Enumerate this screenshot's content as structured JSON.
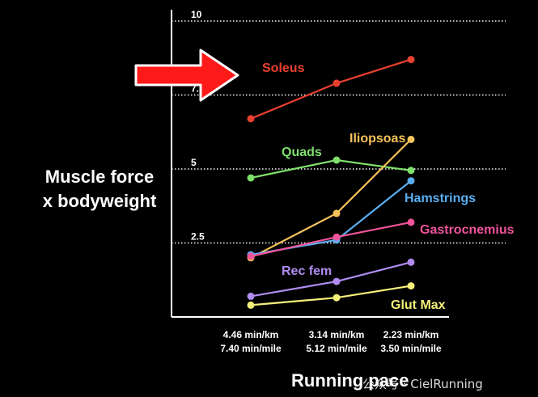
{
  "chart_data": {
    "type": "line",
    "ylabel_lines": [
      "Muscle force",
      "x bodyweight"
    ],
    "xlabel": "Running pace",
    "ylim": [
      0,
      10
    ],
    "yticks": [
      {
        "value": 2.5,
        "label": "2.5"
      },
      {
        "value": 5,
        "label": "5"
      },
      {
        "value": 7.5,
        "label": "7.5"
      },
      {
        "value": 10,
        "label": "10"
      }
    ],
    "grid": "horizontal-dotted",
    "categories": [
      {
        "line1": "4.46 min/km",
        "line2": "7.40 min/mile"
      },
      {
        "line1": "3.14 min/km",
        "line2": "5.12 min/mile"
      },
      {
        "line1": "2.23 min/km",
        "line2": "3.50 min/mile"
      }
    ],
    "series": [
      {
        "name": "Soleus",
        "color": "#e8402f",
        "values": [
          6.7,
          7.9,
          8.7
        ]
      },
      {
        "name": "Quads",
        "color": "#7fe06c",
        "values": [
          4.7,
          5.3,
          4.95
        ]
      },
      {
        "name": "Iliopsoas",
        "color": "#f5c25a",
        "values": [
          2.0,
          3.5,
          6.0
        ]
      },
      {
        "name": "Hamstrings",
        "color": "#5aaef0",
        "values": [
          2.1,
          2.6,
          4.6
        ]
      },
      {
        "name": "Gastrocnemius",
        "color": "#f0549a",
        "values": [
          2.05,
          2.7,
          3.2
        ]
      },
      {
        "name": "Rec fem",
        "color": "#b08cf0",
        "values": [
          0.7,
          1.2,
          1.85
        ]
      },
      {
        "name": "Glut Max",
        "color": "#f5f07a",
        "values": [
          0.4,
          0.65,
          1.05
        ]
      }
    ],
    "annotation": {
      "type": "arrow",
      "color": "#ff1a1a",
      "points_to": "Soleus"
    }
  },
  "watermark": "公众号 · CielRunning"
}
